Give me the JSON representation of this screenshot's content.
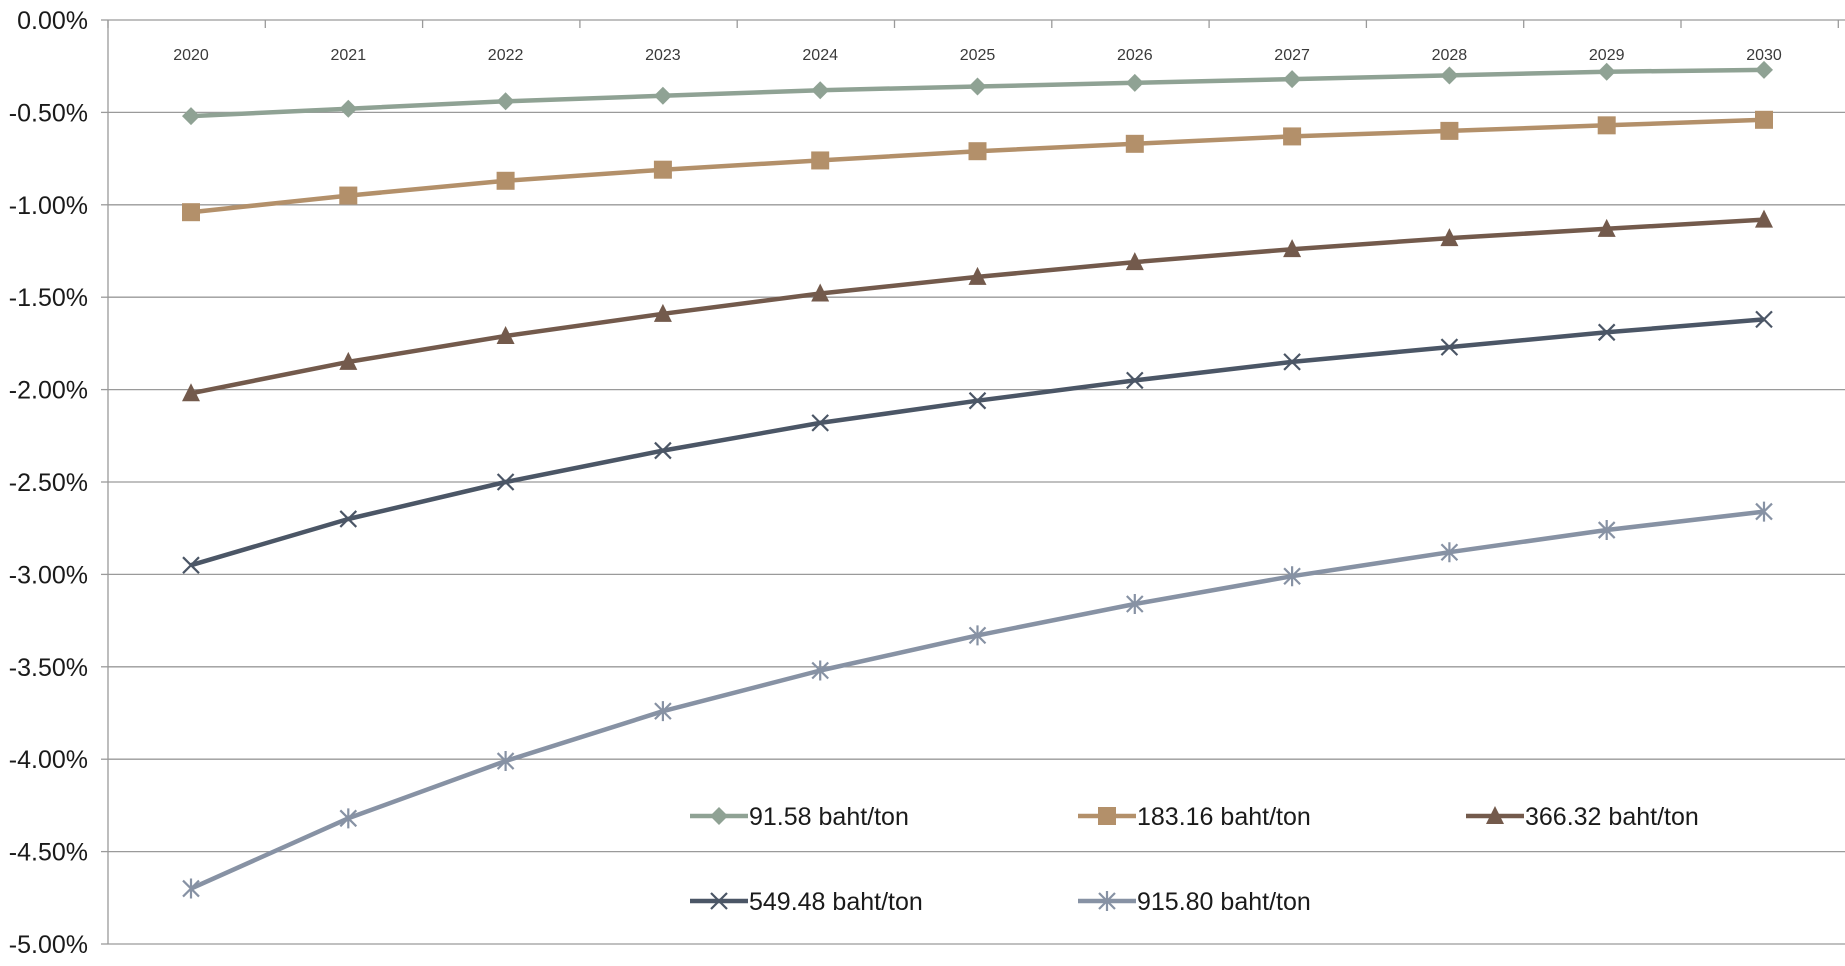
{
  "chart_data": {
    "type": "line",
    "title": "",
    "xlabel": "",
    "ylabel": "",
    "x": [
      "2020",
      "2021",
      "2022",
      "2023",
      "2024",
      "2025",
      "2026",
      "2027",
      "2028",
      "2029",
      "2030"
    ],
    "y_ticks": [
      "0.00%",
      "-0.50%",
      "-1.00%",
      "-1.50%",
      "-2.00%",
      "-2.50%",
      "-3.00%",
      "-3.50%",
      "-4.00%",
      "-4.50%",
      "-5.00%"
    ],
    "ylim": [
      -5.0,
      0.0
    ],
    "y_unit": "%",
    "grid": true,
    "legend_position": "bottom-right",
    "series": [
      {
        "name": "91.58 baht/ton",
        "color": "#8fa294",
        "marker": "diamond",
        "values": [
          -0.52,
          -0.48,
          -0.44,
          -0.41,
          -0.38,
          -0.36,
          -0.34,
          -0.32,
          -0.3,
          -0.28,
          -0.27
        ]
      },
      {
        "name": "183.16 baht/ton",
        "color": "#b3906a",
        "marker": "square",
        "values": [
          -1.04,
          -0.95,
          -0.87,
          -0.81,
          -0.76,
          -0.71,
          -0.67,
          -0.63,
          -0.6,
          -0.57,
          -0.54
        ]
      },
      {
        "name": "366.32 baht/ton",
        "color": "#735a4c",
        "marker": "triangle",
        "values": [
          -2.02,
          -1.85,
          -1.71,
          -1.59,
          -1.48,
          -1.39,
          -1.31,
          -1.24,
          -1.18,
          -1.13,
          -1.08
        ]
      },
      {
        "name": "549.48 baht/ton",
        "color": "#4b5666",
        "marker": "x",
        "values": [
          -2.95,
          -2.7,
          -2.5,
          -2.33,
          -2.18,
          -2.06,
          -1.95,
          -1.85,
          -1.77,
          -1.69,
          -1.62
        ]
      },
      {
        "name": "915.80 baht/ton",
        "color": "#8792a4",
        "marker": "star",
        "values": [
          -4.7,
          -4.32,
          -4.01,
          -3.74,
          -3.52,
          -3.33,
          -3.16,
          -3.01,
          -2.88,
          -2.76,
          -2.66
        ]
      }
    ]
  }
}
